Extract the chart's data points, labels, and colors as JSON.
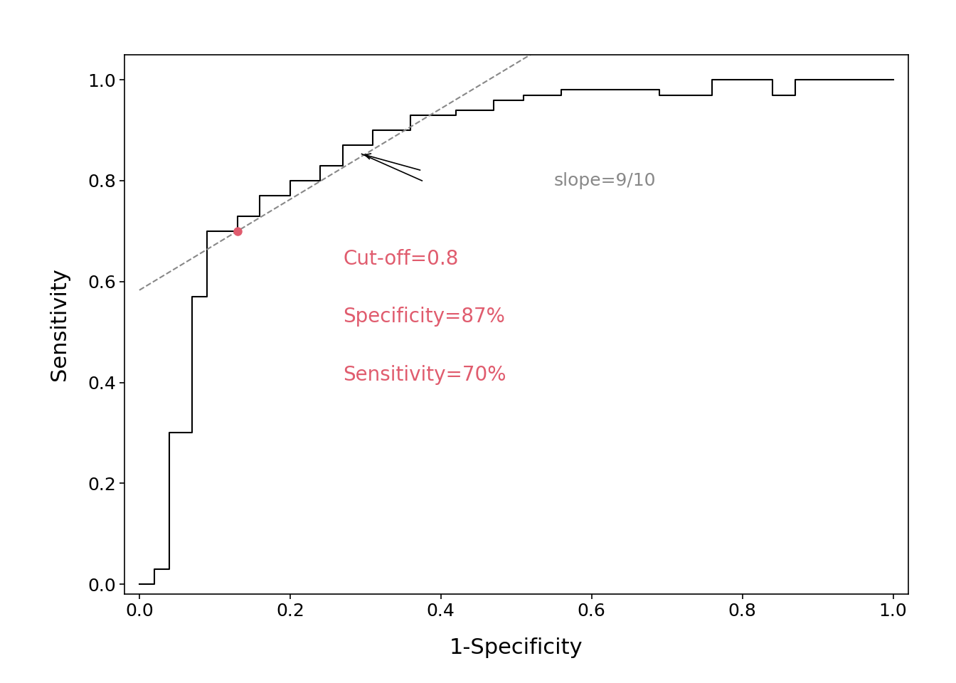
{
  "title": "",
  "xlabel": "1-Specificity",
  "ylabel": "Sensitivity",
  "xlim": [
    -0.02,
    1.02
  ],
  "ylim": [
    -0.02,
    1.05
  ],
  "roc_fpr": [
    0.0,
    0.02,
    0.02,
    0.04,
    0.04,
    0.07,
    0.07,
    0.09,
    0.09,
    0.13,
    0.13,
    0.16,
    0.16,
    0.2,
    0.2,
    0.24,
    0.24,
    0.27,
    0.27,
    0.31,
    0.31,
    0.36,
    0.36,
    0.42,
    0.42,
    0.47,
    0.47,
    0.51,
    0.51,
    0.56,
    0.56,
    0.62,
    0.62,
    0.69,
    0.69,
    0.76,
    0.76,
    0.84,
    0.84,
    0.87,
    0.87,
    1.0
  ],
  "roc_tpr": [
    0.0,
    0.0,
    0.03,
    0.03,
    0.3,
    0.3,
    0.57,
    0.57,
    0.7,
    0.7,
    0.73,
    0.73,
    0.77,
    0.77,
    0.8,
    0.8,
    0.83,
    0.83,
    0.87,
    0.87,
    0.9,
    0.9,
    0.93,
    0.93,
    0.94,
    0.94,
    0.96,
    0.96,
    0.97,
    0.97,
    0.98,
    0.98,
    0.98,
    0.98,
    0.97,
    0.97,
    1.0,
    1.0,
    0.97,
    0.97,
    1.0,
    1.0
  ],
  "optimal_point": [
    0.13,
    0.7
  ],
  "slope": "9/10",
  "slope_intercept": 0.583,
  "slope_val": 0.9,
  "cutoff_text": "Cut-off=0.8",
  "specificity_text": "Specificity=87%",
  "sensitivity_text": "Sensitivity=70%",
  "text_color": "#e05c6e",
  "slope_color": "#888888",
  "optimal_color": "#e05c6e",
  "xticks": [
    0.0,
    0.2,
    0.4,
    0.6,
    0.8,
    1.0
  ],
  "yticks": [
    0.0,
    0.2,
    0.4,
    0.6,
    0.8,
    1.0
  ]
}
